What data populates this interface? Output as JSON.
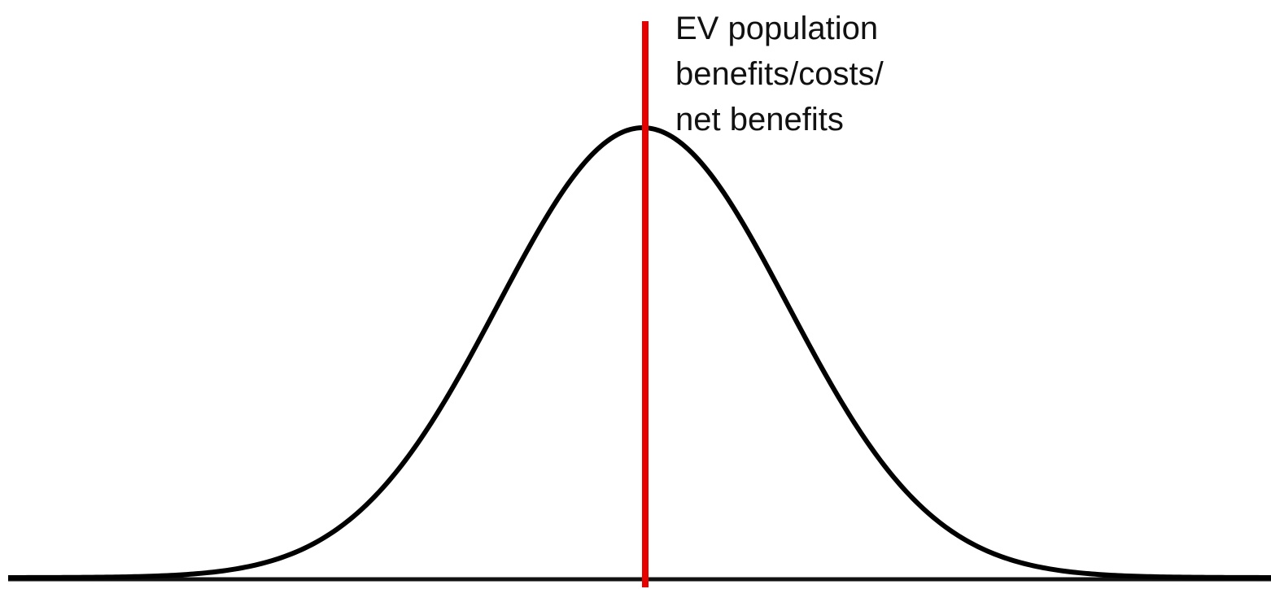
{
  "annotation": {
    "lines": [
      "EV population",
      "benefits/costs/",
      "net benefits"
    ]
  }
}
